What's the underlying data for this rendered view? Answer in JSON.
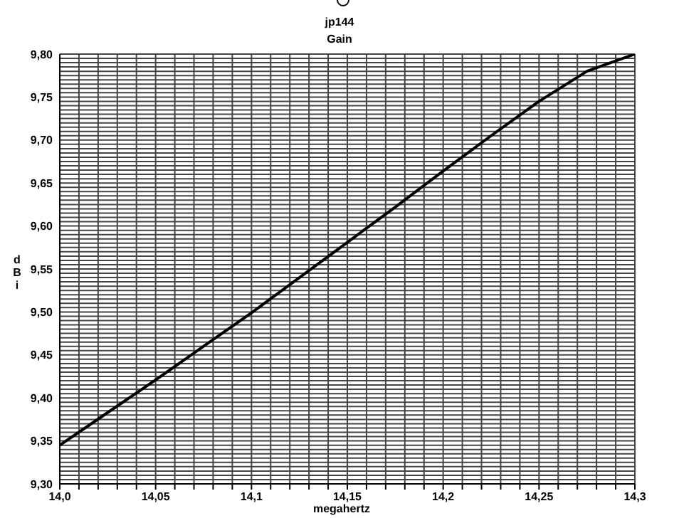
{
  "chart_data": {
    "type": "line",
    "title": "jp144",
    "subtitle": "Gain",
    "xlabel": "megahertz",
    "ylabel": "dBi",
    "x": [
      14.0,
      14.025,
      14.05,
      14.075,
      14.1,
      14.125,
      14.15,
      14.175,
      14.2,
      14.225,
      14.25,
      14.275,
      14.3
    ],
    "series": [
      {
        "color": "#000000",
        "values": [
          9.345,
          9.383,
          9.421,
          9.46,
          9.499,
          9.54,
          9.581,
          9.622,
          9.664,
          9.705,
          9.745,
          9.78,
          9.8
        ]
      }
    ],
    "xlim": [
      14.0,
      14.3
    ],
    "xticks": [
      {
        "value": 14.0,
        "label": "14,0"
      },
      {
        "value": 14.01,
        "label": null
      },
      {
        "value": 14.02,
        "label": null
      },
      {
        "value": 14.03,
        "label": null
      },
      {
        "value": 14.04,
        "label": null
      },
      {
        "value": 14.05,
        "label": "14,05"
      },
      {
        "value": 14.06,
        "label": null
      },
      {
        "value": 14.07,
        "label": null
      },
      {
        "value": 14.08,
        "label": null
      },
      {
        "value": 14.09,
        "label": null
      },
      {
        "value": 14.1,
        "label": "14,1"
      },
      {
        "value": 14.11,
        "label": null
      },
      {
        "value": 14.12,
        "label": null
      },
      {
        "value": 14.13,
        "label": null
      },
      {
        "value": 14.14,
        "label": null
      },
      {
        "value": 14.15,
        "label": "14,15"
      },
      {
        "value": 14.16,
        "label": null
      },
      {
        "value": 14.17,
        "label": null
      },
      {
        "value": 14.18,
        "label": null
      },
      {
        "value": 14.19,
        "label": null
      },
      {
        "value": 14.2,
        "label": "14,2"
      },
      {
        "value": 14.21,
        "label": null
      },
      {
        "value": 14.22,
        "label": null
      },
      {
        "value": 14.23,
        "label": null
      },
      {
        "value": 14.24,
        "label": null
      },
      {
        "value": 14.25,
        "label": "14,25"
      },
      {
        "value": 14.26,
        "label": null
      },
      {
        "value": 14.27,
        "label": null
      },
      {
        "value": 14.28,
        "label": null
      },
      {
        "value": 14.29,
        "label": null
      },
      {
        "value": 14.3,
        "label": "14,3"
      }
    ],
    "ylim": [
      9.3,
      9.8
    ],
    "yticks": [
      {
        "value": 9.3,
        "label": "9,30"
      },
      {
        "value": 9.305,
        "label": null
      },
      {
        "value": 9.31,
        "label": null
      },
      {
        "value": 9.315,
        "label": null
      },
      {
        "value": 9.32,
        "label": null
      },
      {
        "value": 9.325,
        "label": null
      },
      {
        "value": 9.33,
        "label": null
      },
      {
        "value": 9.335,
        "label": null
      },
      {
        "value": 9.34,
        "label": null
      },
      {
        "value": 9.345,
        "label": null
      },
      {
        "value": 9.35,
        "label": "9,35"
      },
      {
        "value": 9.355,
        "label": null
      },
      {
        "value": 9.36,
        "label": null
      },
      {
        "value": 9.365,
        "label": null
      },
      {
        "value": 9.37,
        "label": null
      },
      {
        "value": 9.375,
        "label": null
      },
      {
        "value": 9.38,
        "label": null
      },
      {
        "value": 9.385,
        "label": null
      },
      {
        "value": 9.39,
        "label": null
      },
      {
        "value": 9.395,
        "label": null
      },
      {
        "value": 9.4,
        "label": "9,40"
      },
      {
        "value": 9.405,
        "label": null
      },
      {
        "value": 9.41,
        "label": null
      },
      {
        "value": 9.415,
        "label": null
      },
      {
        "value": 9.42,
        "label": null
      },
      {
        "value": 9.425,
        "label": null
      },
      {
        "value": 9.43,
        "label": null
      },
      {
        "value": 9.435,
        "label": null
      },
      {
        "value": 9.44,
        "label": null
      },
      {
        "value": 9.445,
        "label": null
      },
      {
        "value": 9.45,
        "label": "9,45"
      },
      {
        "value": 9.455,
        "label": null
      },
      {
        "value": 9.46,
        "label": null
      },
      {
        "value": 9.465,
        "label": null
      },
      {
        "value": 9.47,
        "label": null
      },
      {
        "value": 9.475,
        "label": null
      },
      {
        "value": 9.48,
        "label": null
      },
      {
        "value": 9.485,
        "label": null
      },
      {
        "value": 9.49,
        "label": null
      },
      {
        "value": 9.495,
        "label": null
      },
      {
        "value": 9.5,
        "label": "9,50"
      },
      {
        "value": 9.505,
        "label": null
      },
      {
        "value": 9.51,
        "label": null
      },
      {
        "value": 9.515,
        "label": null
      },
      {
        "value": 9.52,
        "label": null
      },
      {
        "value": 9.525,
        "label": null
      },
      {
        "value": 9.53,
        "label": null
      },
      {
        "value": 9.535,
        "label": null
      },
      {
        "value": 9.54,
        "label": null
      },
      {
        "value": 9.545,
        "label": null
      },
      {
        "value": 9.55,
        "label": "9,55"
      },
      {
        "value": 9.555,
        "label": null
      },
      {
        "value": 9.56,
        "label": null
      },
      {
        "value": 9.565,
        "label": null
      },
      {
        "value": 9.57,
        "label": null
      },
      {
        "value": 9.575,
        "label": null
      },
      {
        "value": 9.58,
        "label": null
      },
      {
        "value": 9.585,
        "label": null
      },
      {
        "value": 9.59,
        "label": null
      },
      {
        "value": 9.595,
        "label": null
      },
      {
        "value": 9.6,
        "label": "9,60"
      },
      {
        "value": 9.605,
        "label": null
      },
      {
        "value": 9.61,
        "label": null
      },
      {
        "value": 9.615,
        "label": null
      },
      {
        "value": 9.62,
        "label": null
      },
      {
        "value": 9.625,
        "label": null
      },
      {
        "value": 9.63,
        "label": null
      },
      {
        "value": 9.635,
        "label": null
      },
      {
        "value": 9.64,
        "label": null
      },
      {
        "value": 9.645,
        "label": null
      },
      {
        "value": 9.65,
        "label": "9,65"
      },
      {
        "value": 9.655,
        "label": null
      },
      {
        "value": 9.66,
        "label": null
      },
      {
        "value": 9.665,
        "label": null
      },
      {
        "value": 9.67,
        "label": null
      },
      {
        "value": 9.675,
        "label": null
      },
      {
        "value": 9.68,
        "label": null
      },
      {
        "value": 9.685,
        "label": null
      },
      {
        "value": 9.69,
        "label": null
      },
      {
        "value": 9.695,
        "label": null
      },
      {
        "value": 9.7,
        "label": "9,70"
      },
      {
        "value": 9.705,
        "label": null
      },
      {
        "value": 9.71,
        "label": null
      },
      {
        "value": 9.715,
        "label": null
      },
      {
        "value": 9.72,
        "label": null
      },
      {
        "value": 9.725,
        "label": null
      },
      {
        "value": 9.73,
        "label": null
      },
      {
        "value": 9.735,
        "label": null
      },
      {
        "value": 9.74,
        "label": null
      },
      {
        "value": 9.745,
        "label": null
      },
      {
        "value": 9.75,
        "label": "9,75"
      },
      {
        "value": 9.755,
        "label": null
      },
      {
        "value": 9.76,
        "label": null
      },
      {
        "value": 9.765,
        "label": null
      },
      {
        "value": 9.77,
        "label": null
      },
      {
        "value": 9.775,
        "label": null
      },
      {
        "value": 9.78,
        "label": null
      },
      {
        "value": 9.785,
        "label": null
      },
      {
        "value": 9.79,
        "label": null
      },
      {
        "value": 9.795,
        "label": null
      },
      {
        "value": 9.8,
        "label": "9,80"
      }
    ],
    "grid": true,
    "legend": false,
    "marker": "none",
    "line_style": "solid"
  }
}
